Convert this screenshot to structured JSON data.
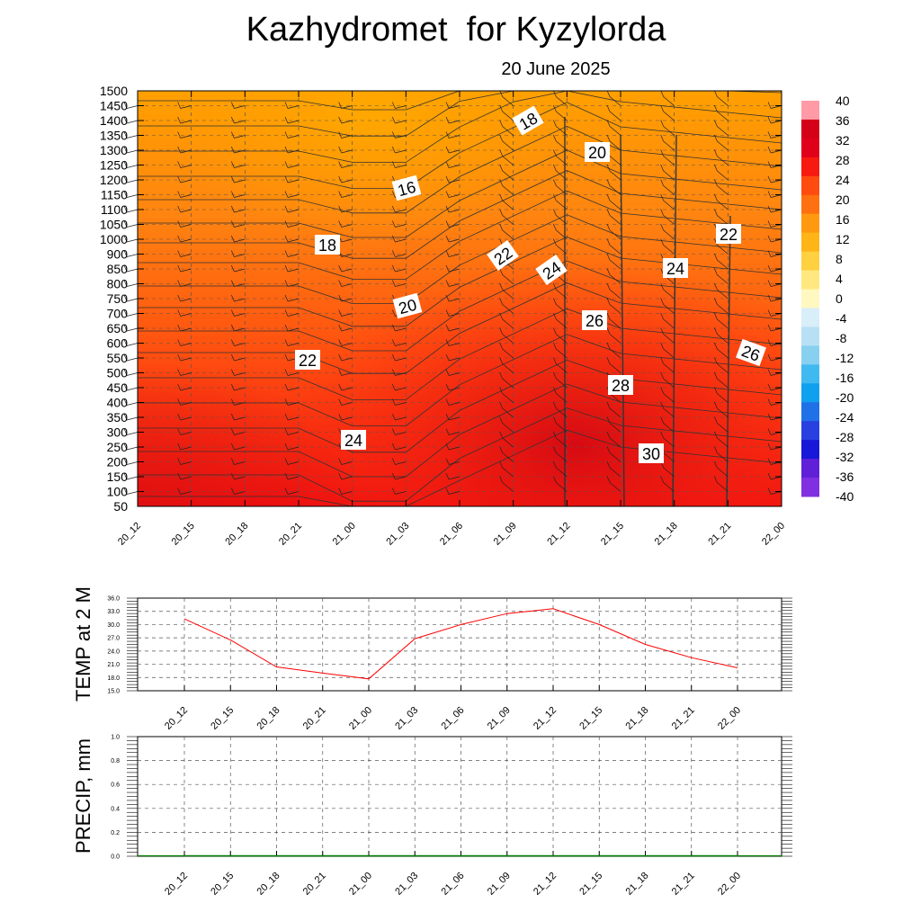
{
  "title": "Kazhydromet  for Kyzylorda",
  "subtitle": "20 June 2025",
  "colors": {
    "line_red": "#ff0000",
    "precip_green": "#008000",
    "contour": "#333333"
  },
  "chart_data": [
    {
      "type": "heatmap",
      "name": "cross-section",
      "x_labels": [
        "20_12",
        "20_15",
        "20_18",
        "20_21",
        "21_00",
        "21_03",
        "21_06",
        "21_09",
        "21_12",
        "21_15",
        "21_18",
        "21_21",
        "22_00"
      ],
      "y_ticks": [
        50,
        100,
        150,
        200,
        250,
        300,
        350,
        400,
        450,
        500,
        550,
        600,
        650,
        700,
        750,
        800,
        850,
        900,
        1000,
        1050,
        1100,
        1150,
        1200,
        1250,
        1300,
        1350,
        1400,
        1450,
        1500
      ],
      "colorbar": {
        "labels": [
          40,
          36,
          32,
          28,
          24,
          20,
          16,
          12,
          8,
          4,
          0,
          -4,
          -8,
          -12,
          -16,
          -20,
          -24,
          -28,
          -32,
          -36,
          -40
        ],
        "colors": [
          "#ff9aa6",
          "#d40018",
          "#e0001a",
          "#f61a10",
          "#ff4a10",
          "#ff7010",
          "#ff9a10",
          "#ffb418",
          "#ffd040",
          "#ffe880",
          "#fff8c0",
          "#d8eef8",
          "#b8e0f4",
          "#88d0f0",
          "#40b8f0",
          "#10a0f0",
          "#2070e8",
          "#2840e0",
          "#1818d8",
          "#6020d8",
          "#8030e0"
        ]
      },
      "contour_labels": [
        {
          "text": "18",
          "rot": -30
        },
        {
          "text": "20",
          "rot": 0
        },
        {
          "text": "16",
          "rot": -15
        },
        {
          "text": "18",
          "rot": 0
        },
        {
          "text": "22",
          "rot": -35
        },
        {
          "text": "24",
          "rot": -35
        },
        {
          "text": "24",
          "rot": 0
        },
        {
          "text": "22",
          "rot": 0
        },
        {
          "text": "20",
          "rot": -15
        },
        {
          "text": "26",
          "rot": 0
        },
        {
          "text": "22",
          "rot": 0
        },
        {
          "text": "26",
          "rot": 20
        },
        {
          "text": "28",
          "rot": 0
        },
        {
          "text": "24",
          "rot": 0
        },
        {
          "text": "30",
          "rot": 0
        }
      ]
    },
    {
      "type": "line",
      "name": "temperature",
      "ylabel": "TEMP at 2 M",
      "categories": [
        "20_12",
        "20_15",
        "20_18",
        "20_21",
        "21_00",
        "21_03",
        "21_06",
        "21_09",
        "21_12",
        "21_15",
        "21_18",
        "21_21",
        "22_00"
      ],
      "values": [
        31.3,
        26.5,
        20.4,
        19.0,
        17.7,
        26.8,
        30.0,
        32.5,
        33.6,
        30.0,
        25.5,
        22.5,
        20.2
      ],
      "ylim": [
        15.0,
        36.0
      ],
      "y_ticks": [
        "36.0",
        "33.0",
        "30.0",
        "27.0",
        "24.0",
        "21.0",
        "18.0",
        "15.0"
      ],
      "y_tick_values": [
        36,
        33,
        30,
        27,
        24,
        21,
        18,
        15
      ]
    },
    {
      "type": "line",
      "name": "precipitation",
      "ylabel": "PRECIP, mm",
      "categories": [
        "20_12",
        "20_15",
        "20_18",
        "20_21",
        "21_00",
        "21_03",
        "21_06",
        "21_09",
        "21_12",
        "21_15",
        "21_18",
        "21_21",
        "22_00"
      ],
      "values": [
        0,
        0,
        0,
        0,
        0,
        0,
        0,
        0,
        0,
        0,
        0,
        0,
        0
      ],
      "ylim": [
        0.0,
        1.0
      ],
      "y_ticks": [
        "1.0",
        "0.8",
        "0.6",
        "0.4",
        "0.2",
        "0.0"
      ],
      "y_tick_values": [
        1.0,
        0.8,
        0.6,
        0.4,
        0.2,
        0.0
      ]
    }
  ]
}
